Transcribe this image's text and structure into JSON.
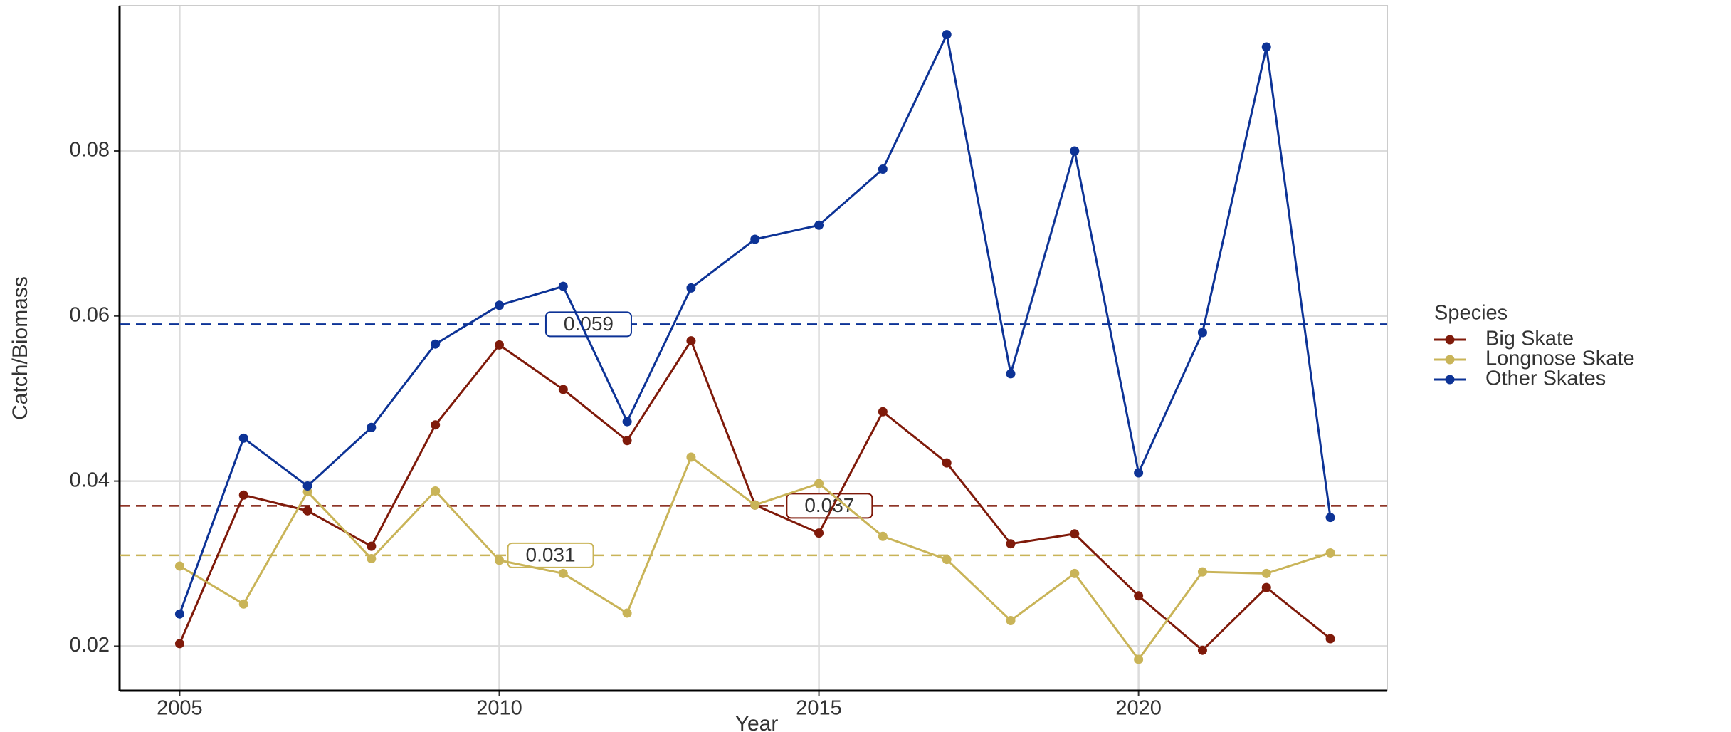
{
  "chart_data": {
    "type": "line",
    "x_label": "Year",
    "y_label": "Catch/Biomass",
    "legend_title": "Species",
    "legend_position": "right",
    "x": [
      2005,
      2006,
      2007,
      2008,
      2009,
      2010,
      2011,
      2012,
      2013,
      2014,
      2015,
      2016,
      2017,
      2018,
      2019,
      2020,
      2021,
      2022,
      2023
    ],
    "series": [
      {
        "name": "Big Skate",
        "color": "#7f1a0a",
        "values": [
          0.0203,
          0.0383,
          0.0364,
          0.0321,
          0.0468,
          0.0565,
          0.0511,
          0.0449,
          0.057,
          0.0371,
          0.0337,
          0.0484,
          0.0422,
          0.0324,
          0.0336,
          0.0261,
          0.0195,
          0.0271,
          0.0209
        ]
      },
      {
        "name": "Longnose Skate",
        "color": "#c9b458",
        "values": [
          0.0297,
          0.0251,
          0.0387,
          0.0306,
          0.0388,
          0.0304,
          0.0288,
          0.024,
          0.0429,
          0.0371,
          0.0397,
          0.0333,
          0.0305,
          0.0231,
          0.0288,
          0.0184,
          0.029,
          0.0288,
          0.0313
        ]
      },
      {
        "name": "Other Skates",
        "color": "#0d3396",
        "values": [
          0.0239,
          0.0452,
          0.0394,
          0.0465,
          0.0566,
          0.0613,
          0.0636,
          0.0472,
          0.0634,
          0.0693,
          0.071,
          0.0778,
          0.0941,
          0.053,
          0.08,
          0.041,
          0.058,
          0.0926,
          0.0356
        ]
      }
    ],
    "reference_lines": [
      {
        "value": 0.059,
        "color": "#0d3396"
      },
      {
        "value": 0.037,
        "color": "#7f1a0a"
      },
      {
        "value": 0.031,
        "color": "#c9b458"
      }
    ],
    "xlim": [
      2004.06,
      2023.89
    ],
    "xticks": [
      2005,
      2010,
      2015,
      2020
    ],
    "ylim": [
      0.0146,
      0.0976
    ],
    "yticks": [
      0.02,
      0.04,
      0.06,
      0.08
    ],
    "grid": true
  }
}
